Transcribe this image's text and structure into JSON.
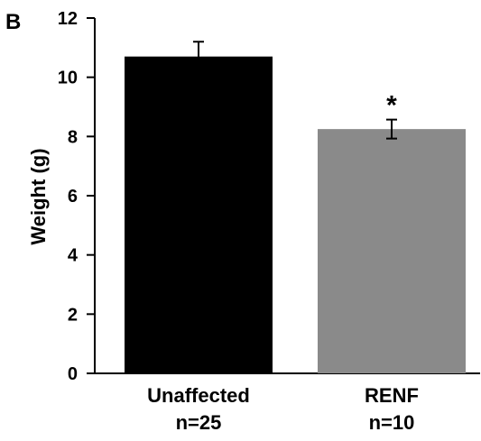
{
  "panel_label": "B",
  "chart_data": {
    "type": "bar",
    "categories": [
      "Unaffected",
      "RENF"
    ],
    "category_sublabels": [
      "n=25",
      "n=10"
    ],
    "values": [
      10.7,
      8.25
    ],
    "errors": [
      0.5,
      0.32
    ],
    "colors": [
      "#000000",
      "#8a8a8a"
    ],
    "annotations": [
      "",
      "*"
    ],
    "title": "",
    "xlabel": "",
    "ylabel": "Weight (g)",
    "ylim": [
      0,
      12
    ],
    "yticks": [
      0,
      2,
      4,
      6,
      8,
      10,
      12
    ],
    "grid": false
  }
}
